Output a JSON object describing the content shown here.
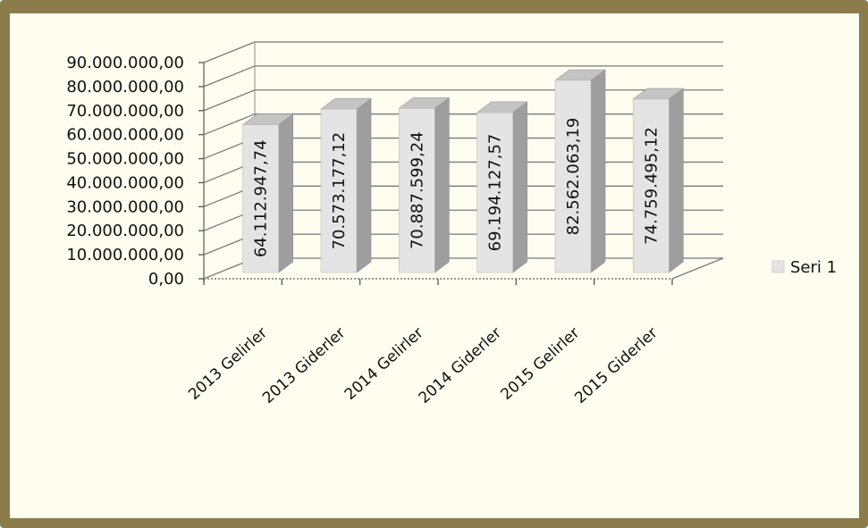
{
  "chart_data": {
    "type": "bar",
    "categories": [
      "2013 Gelirler",
      "2013 Giderler",
      "2014 Gelirler",
      "2014 Giderler",
      "2015 Gelirler",
      "2015 Giderler"
    ],
    "series": [
      {
        "name": "Seri 1",
        "values": [
          64112947.74,
          70573177.12,
          70887599.24,
          69194127.57,
          82562063.19,
          74759495.12
        ],
        "labels": [
          "64.112.947,74",
          "70.573.177,12",
          "70.887.599,24",
          "69.194.127,57",
          "82.562.063,19",
          "74.759.495,12"
        ]
      }
    ],
    "yticks": [
      {
        "value": 0,
        "label": "0,00"
      },
      {
        "value": 10000000,
        "label": "10.000.000,00"
      },
      {
        "value": 20000000,
        "label": "20.000.000,00"
      },
      {
        "value": 30000000,
        "label": "30.000.000,00"
      },
      {
        "value": 40000000,
        "label": "40.000.000,00"
      },
      {
        "value": 50000000,
        "label": "50.000.000,00"
      },
      {
        "value": 60000000,
        "label": "60.000.000,00"
      },
      {
        "value": 70000000,
        "label": "70.000.000,00"
      },
      {
        "value": 80000000,
        "label": "80.000.000,00"
      },
      {
        "value": 90000000,
        "label": "90.000.000,00"
      }
    ],
    "ylim": [
      0,
      90000000
    ],
    "title": "",
    "xlabel": "",
    "ylabel": "",
    "grid": true,
    "legend_position": "right",
    "bar_style": "3d",
    "colors": {
      "bar_front": "#e4e4e4",
      "bar_side": "#9e9e9e",
      "bar_top": "#c4c4c4",
      "frame": "#8c7c4c",
      "background": "#fdfdf0",
      "gridline": "#7a7a7a"
    }
  }
}
